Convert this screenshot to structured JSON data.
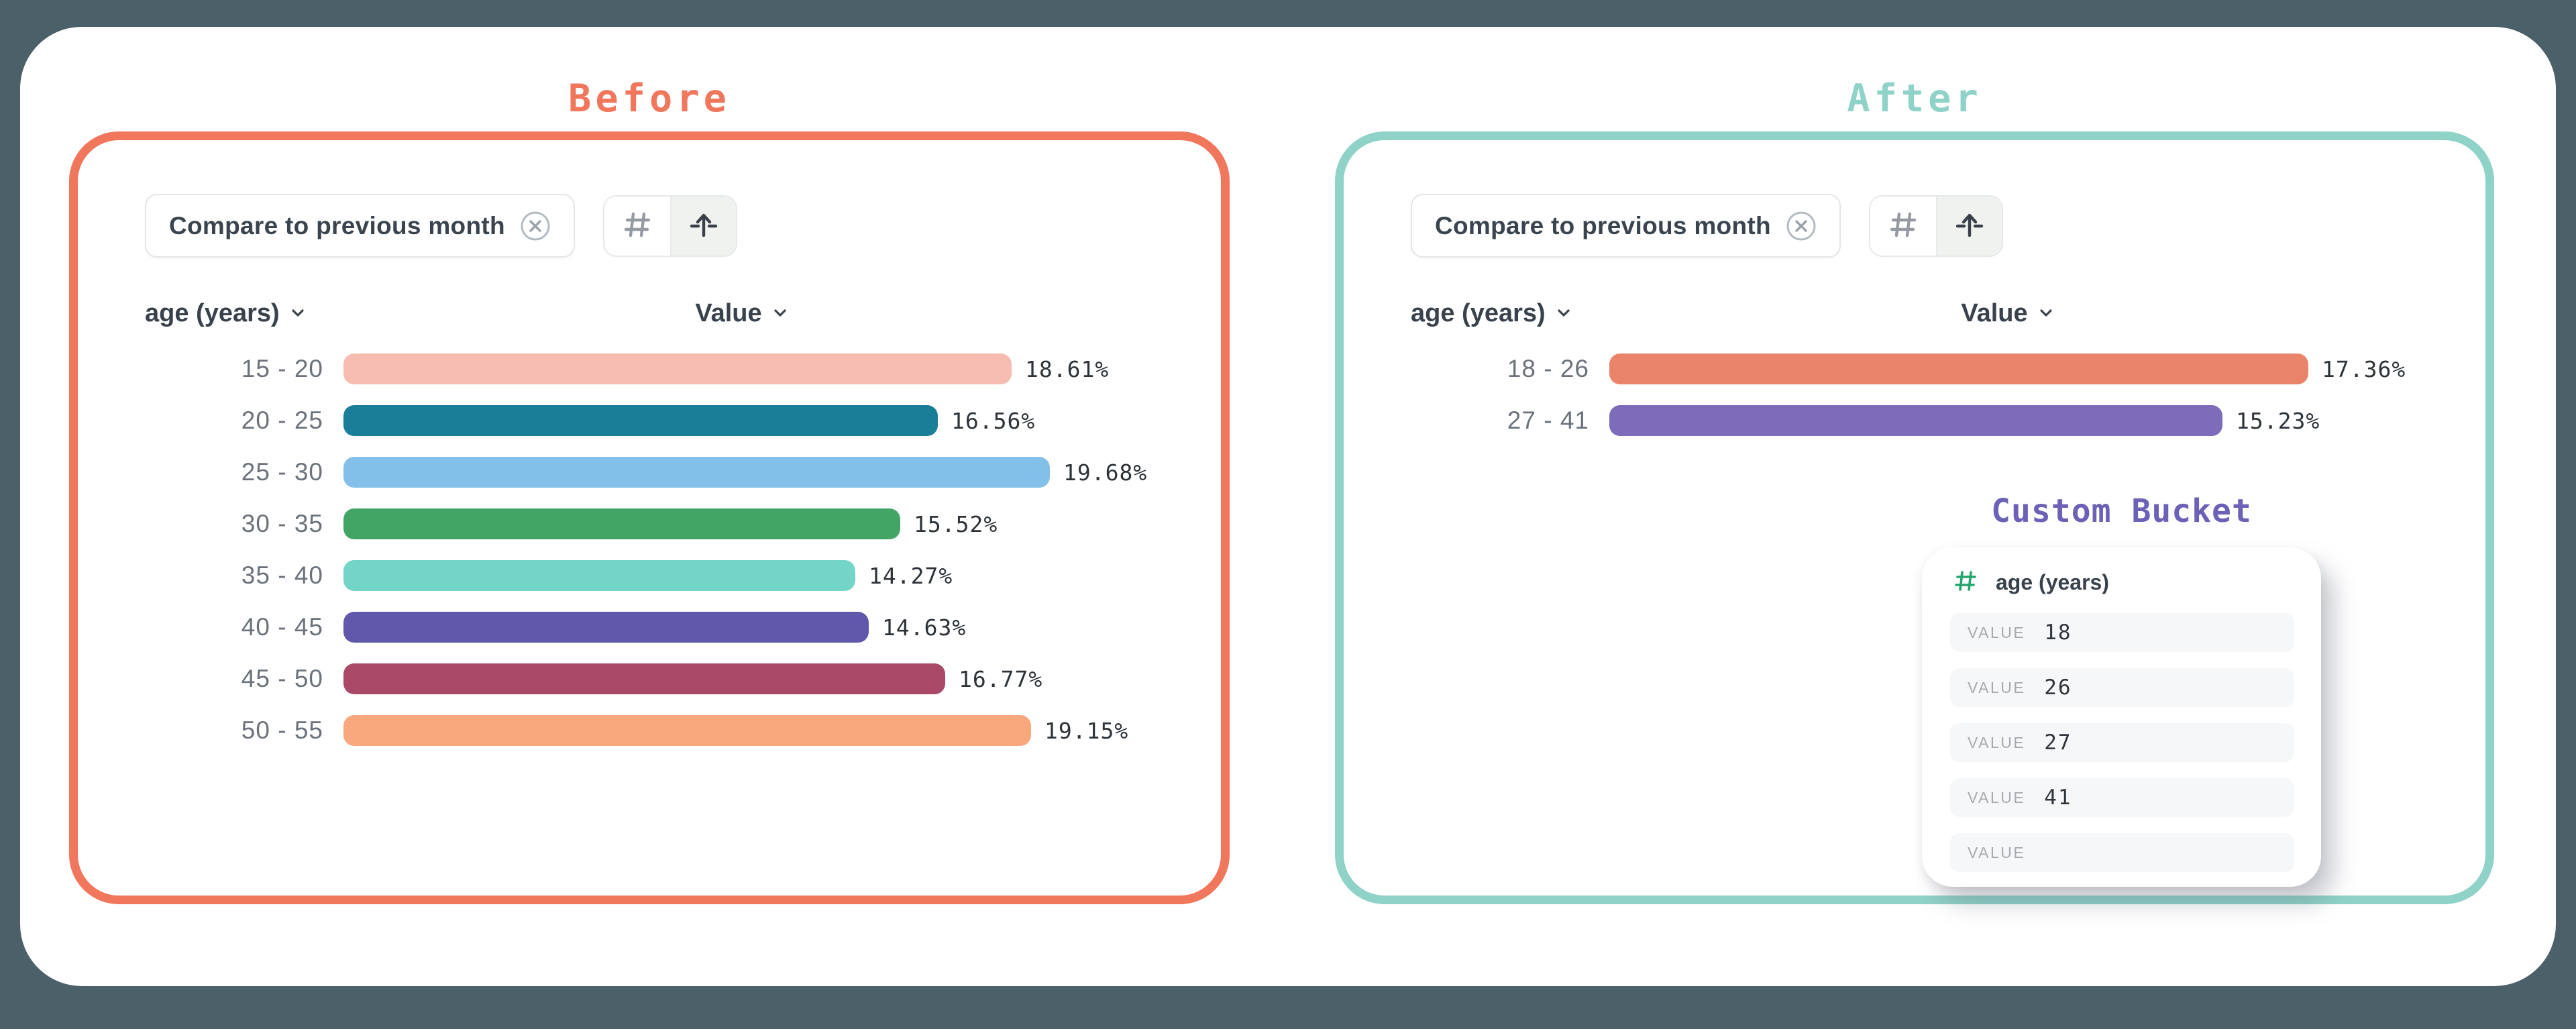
{
  "page": {
    "background": "#4B6069",
    "card_background": "#FFFFFF"
  },
  "before_panel": {
    "title": "Before",
    "accent": "#F0765C",
    "filter_chip": {
      "label": "Compare to previous month",
      "close_icon": "circle-x-icon"
    },
    "toolbar": {
      "left_icon": "hash-grid-icon",
      "right_icon": "align-top-arrow-icon",
      "selected": "right"
    },
    "columns": {
      "dimension": "age (years)",
      "measure": "Value"
    }
  },
  "after_panel": {
    "title": "After",
    "accent": "#8FD2C8",
    "filter_chip": {
      "label": "Compare to previous month",
      "close_icon": "circle-x-icon"
    },
    "toolbar": {
      "left_icon": "hash-grid-icon",
      "right_icon": "align-top-arrow-icon",
      "selected": "right"
    },
    "columns": {
      "dimension": "age (years)",
      "measure": "Value"
    },
    "custom_bucket": {
      "title": "Custom Bucket",
      "accent": "#6B62B8",
      "field": "age (years)",
      "field_icon": "hash-icon",
      "field_icon_color": "#23A56F",
      "value_label": "VALUE",
      "values": [
        "18",
        "26",
        "27",
        "41",
        ""
      ]
    }
  },
  "chart_data": [
    {
      "type": "bar",
      "orientation": "horizontal",
      "panel": "Before",
      "title": "",
      "xlabel": "Value",
      "ylabel": "age (years)",
      "value_format": "percent",
      "xlim": [
        0,
        20
      ],
      "categories": [
        "15 - 20",
        "20 - 25",
        "25 - 30",
        "30 - 35",
        "35 - 40",
        "40 - 45",
        "45 - 50",
        "50 - 55"
      ],
      "values": [
        18.61,
        16.56,
        19.68,
        15.52,
        14.27,
        14.63,
        16.77,
        19.15
      ],
      "colors": [
        "#F7BCB1",
        "#1B7E99",
        "#83C0E9",
        "#42A566",
        "#73D5C7",
        "#6158AC",
        "#AA4868",
        "#F9A87E"
      ]
    },
    {
      "type": "bar",
      "orientation": "horizontal",
      "panel": "After",
      "title": "",
      "xlabel": "Value",
      "ylabel": "age (years)",
      "value_format": "percent",
      "xlim": [
        0,
        20
      ],
      "categories": [
        "18 - 26",
        "27 - 41"
      ],
      "values": [
        17.36,
        15.23
      ],
      "colors": [
        "#E9846A",
        "#7D6CBA"
      ]
    }
  ]
}
